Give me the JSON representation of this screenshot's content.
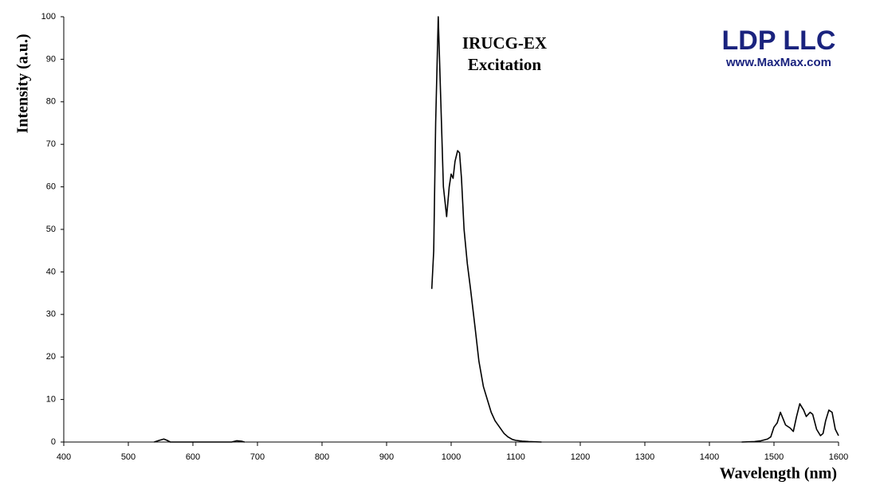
{
  "chart_data": {
    "type": "line",
    "title": "IRUCG-EX",
    "subtitle": "Excitation",
    "x_label": "Wavelength (nm)",
    "y_label": "Intensity (a.u.)",
    "logo": "LDP LLC",
    "logo_url": "www.MaxMax.com",
    "x": [
      540,
      548,
      555,
      560,
      565,
      660,
      668,
      675,
      680,
      null,
      970,
      973,
      976,
      980,
      984,
      988,
      993,
      997,
      1000,
      1003,
      1006,
      1010,
      1013,
      1016,
      1020,
      1025,
      1030,
      1037,
      1043,
      1050,
      1056,
      1062,
      1068,
      1075,
      1082,
      1088,
      1095,
      1100,
      1110,
      1120,
      1140,
      null,
      1450,
      1470,
      1480,
      1490,
      1495,
      1500,
      1505,
      1510,
      1514,
      1518,
      1525,
      1530,
      1535,
      1540,
      1546,
      1550,
      1556,
      1560,
      1566,
      1572,
      1576,
      1580,
      1585,
      1590,
      1595,
      1600
    ],
    "series": [
      {
        "name": "IRUCG-EX",
        "color": "#000000",
        "values": [
          0,
          0.4,
          0.7,
          0.4,
          0,
          0,
          0.3,
          0.2,
          0,
          null,
          36,
          45,
          75,
          100,
          80,
          60,
          53,
          60,
          63,
          62,
          66,
          68.5,
          68,
          62,
          50,
          42,
          36,
          27,
          19,
          13,
          10,
          7,
          5,
          3.5,
          2,
          1.2,
          0.6,
          0.4,
          0.2,
          0.1,
          0,
          null,
          0,
          0.1,
          0.3,
          0.7,
          1.2,
          3.5,
          4.5,
          7,
          5.5,
          4,
          3.3,
          2.5,
          6,
          9,
          7.5,
          6,
          7,
          6.5,
          3,
          1.5,
          2,
          5,
          7.5,
          7,
          3,
          1.5
        ]
      }
    ],
    "xlim": [
      400,
      1600
    ],
    "ylim": [
      0,
      100
    ],
    "xticks": [
      400,
      500,
      600,
      700,
      800,
      900,
      1000,
      1100,
      1200,
      1300,
      1400,
      1500,
      1600
    ],
    "yticks": [
      0,
      10,
      20,
      30,
      40,
      50,
      60,
      70,
      80,
      90,
      100
    ],
    "grid": false
  }
}
